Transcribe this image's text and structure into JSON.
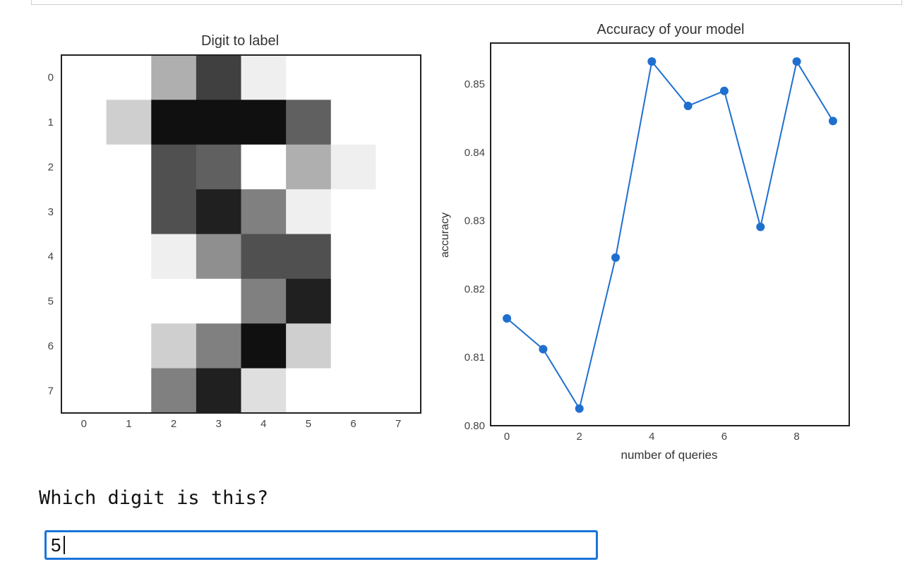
{
  "colors": {
    "line": "#1f6fcf",
    "input_border": "#1a74d9"
  },
  "chart_data": [
    {
      "type": "heatmap",
      "title": "Digit to label",
      "x_ticks": [
        "0",
        "1",
        "2",
        "3",
        "4",
        "5",
        "6",
        "7"
      ],
      "y_ticks": [
        "0",
        "1",
        "2",
        "3",
        "4",
        "5",
        "6",
        "7"
      ],
      "grid": false,
      "colormap": "gray_r",
      "vmax": 16,
      "values": [
        [
          0,
          0,
          5,
          12,
          1,
          0,
          0,
          0
        ],
        [
          0,
          3,
          15,
          15,
          15,
          10,
          0,
          0
        ],
        [
          0,
          0,
          11,
          10,
          0,
          5,
          1,
          0
        ],
        [
          0,
          0,
          11,
          14,
          8,
          1,
          0,
          0
        ],
        [
          0,
          0,
          1,
          7,
          11,
          11,
          0,
          0
        ],
        [
          0,
          0,
          0,
          0,
          8,
          14,
          0,
          0
        ],
        [
          0,
          0,
          3,
          8,
          15,
          3,
          0,
          0
        ],
        [
          0,
          0,
          8,
          14,
          2,
          0,
          0,
          0
        ]
      ]
    },
    {
      "type": "line",
      "title": "Accuracy of your model",
      "xlabel": "number of queries",
      "ylabel": "accuracy",
      "x": [
        0,
        1,
        2,
        3,
        4,
        5,
        6,
        7,
        8,
        9
      ],
      "y": [
        0.8157,
        0.8112,
        0.8025,
        0.8246,
        0.8533,
        0.8468,
        0.849,
        0.8291,
        0.8533,
        0.8446
      ],
      "xlim": [
        -0.45,
        9.45
      ],
      "ylim": [
        0.8,
        0.856
      ],
      "x_ticks": [
        "0",
        "2",
        "4",
        "6",
        "8"
      ],
      "y_ticks": [
        "0.80",
        "0.81",
        "0.82",
        "0.83",
        "0.84",
        "0.85"
      ],
      "grid": false,
      "marker": "circle"
    }
  ],
  "prompt": {
    "question": "Which digit is this?"
  },
  "answer": {
    "value": "5"
  }
}
